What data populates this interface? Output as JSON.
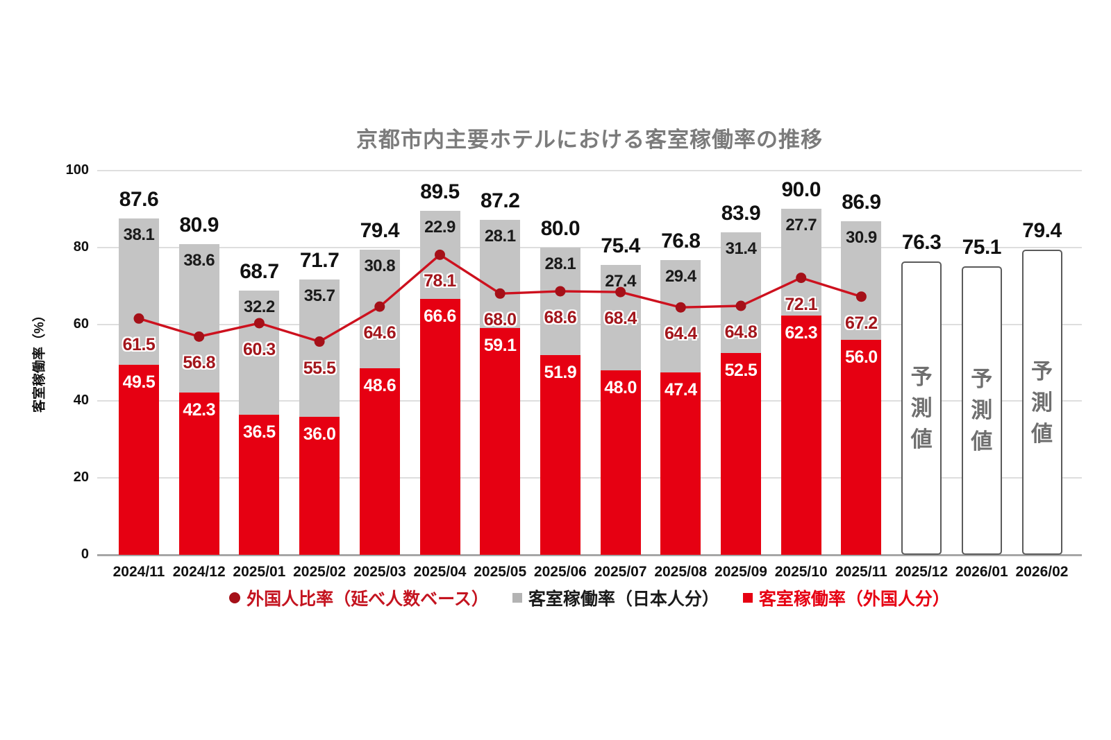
{
  "title": "京都市内主要ホテルにおける客室稼働率の推移",
  "y_axis": {
    "label": "客室稼働率（%）",
    "ticks": [
      0,
      20,
      40,
      60,
      80,
      100
    ],
    "min": 0,
    "max": 100
  },
  "legend": [
    {
      "label": "外国人比率（延べ人数ベース）",
      "marker": "circle",
      "marker_color": "#a51018",
      "text_color": "#c41420"
    },
    {
      "label": "客室稼働率（日本人分）",
      "marker": "square",
      "marker_color": "#b3b3b3",
      "text_color": "#1a1a1a"
    },
    {
      "label": "客室稼働率（外国人分）",
      "marker": "square",
      "marker_color": "#e60012",
      "text_color": "#e60012"
    }
  ],
  "forecast": {
    "label": "予測値",
    "indices": [
      13,
      14,
      15
    ]
  },
  "chart_data": {
    "type": "bar",
    "subtype": "stacked-bar-with-line",
    "title": "京都市内主要ホテルにおける客室稼働率の推移",
    "xlabel": "",
    "ylabel": "客室稼働率（%）",
    "ylim": [
      0,
      100
    ],
    "grid": true,
    "legend_position": "bottom",
    "categories": [
      "2024/11",
      "2024/12",
      "2025/01",
      "2025/02",
      "2025/03",
      "2025/04",
      "2025/05",
      "2025/06",
      "2025/07",
      "2025/08",
      "2025/09",
      "2025/10",
      "2025/11",
      "2025/12",
      "2026/01",
      "2026/02"
    ],
    "series": [
      {
        "name": "客室稼働率（外国人分）",
        "type": "bar",
        "stack": "occupancy",
        "color": "#e60012",
        "values": [
          49.5,
          42.3,
          36.5,
          36.0,
          48.6,
          66.6,
          59.1,
          51.9,
          48.0,
          47.4,
          52.5,
          62.3,
          56.0,
          null,
          null,
          null
        ]
      },
      {
        "name": "客室稼働率（日本人分）",
        "type": "bar",
        "stack": "occupancy",
        "color": "#c4c4c4",
        "values": [
          38.1,
          38.6,
          32.2,
          35.7,
          30.8,
          22.9,
          28.1,
          28.1,
          27.4,
          29.4,
          31.4,
          27.7,
          30.9,
          null,
          null,
          null
        ]
      },
      {
        "name": "外国人比率（延べ人数ベース）",
        "type": "line",
        "color": "#cd111e",
        "marker_color": "#a51018",
        "values": [
          61.5,
          56.8,
          60.3,
          55.5,
          64.6,
          78.1,
          68.0,
          68.6,
          68.4,
          64.4,
          64.8,
          72.1,
          67.2,
          null,
          null,
          null
        ]
      }
    ],
    "totals": [
      87.6,
      80.9,
      68.7,
      71.7,
      79.4,
      89.5,
      87.2,
      80.0,
      75.4,
      76.8,
      83.9,
      90.0,
      86.9,
      76.3,
      75.1,
      79.4
    ],
    "forecast_values": [
      76.3,
      75.1,
      79.4
    ],
    "forecast_bar_label": "予測値"
  },
  "colors": {
    "bar_foreign": "#e60012",
    "bar_japanese": "#c4c4c4",
    "line": "#cd111e",
    "line_marker": "#a51018",
    "line_label": "#a3161c",
    "gridline": "#dedede",
    "axis": "#a6a6a6",
    "title": "#7b7b7b",
    "forecast_border": "#5a5a5a",
    "forecast_text": "#6f6f6f"
  }
}
